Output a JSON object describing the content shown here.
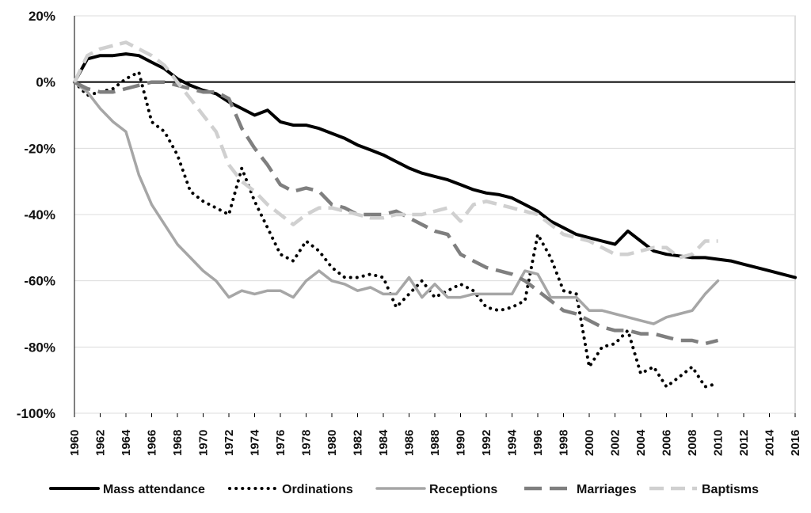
{
  "chart_data": {
    "type": "line",
    "title": "",
    "xlabel": "",
    "ylabel": "",
    "xlim": [
      1960,
      2016
    ],
    "ylim": [
      -100,
      20
    ],
    "y_ticks": [
      20,
      0,
      -20,
      -40,
      -60,
      -80,
      -100
    ],
    "y_tick_labels": [
      "20%",
      "0%",
      "-20%",
      "-40%",
      "-60%",
      "-80%",
      "-100%"
    ],
    "x_ticks": [
      1960,
      1962,
      1964,
      1966,
      1968,
      1970,
      1972,
      1974,
      1976,
      1978,
      1980,
      1982,
      1984,
      1986,
      1988,
      1990,
      1992,
      1994,
      1996,
      1998,
      2000,
      2002,
      2004,
      2006,
      2008,
      2010,
      2012,
      2014,
      2016
    ],
    "x_tick_labels": [
      "1960",
      "1962",
      "1964",
      "1966",
      "1968",
      "1970",
      "1972",
      "1974",
      "1976",
      "1978",
      "1980",
      "1982",
      "1984",
      "1986",
      "1988",
      "1990",
      "1992",
      "1994",
      "1996",
      "1998",
      "2000",
      "2002",
      "2004",
      "2006",
      "2008",
      "2010",
      "2012",
      "2014",
      "2016"
    ],
    "grid": "horizontal",
    "legend_position": "bottom",
    "series": [
      {
        "name": "Mass attendance",
        "style": "solid-thick",
        "color": "#000000",
        "x": [
          1960,
          1961,
          1962,
          1963,
          1964,
          1965,
          1966,
          1967,
          1968,
          1969,
          1970,
          1971,
          1972,
          1973,
          1974,
          1975,
          1976,
          1977,
          1978,
          1979,
          1980,
          1981,
          1982,
          1983,
          1984,
          1985,
          1986,
          1987,
          1988,
          1989,
          1990,
          1991,
          1992,
          1993,
          1994,
          1995,
          1996,
          1997,
          1998,
          1999,
          2000,
          2001,
          2002,
          2003,
          2004,
          2005,
          2006,
          2007,
          2008,
          2009,
          2010,
          2011,
          2012,
          2013,
          2014,
          2015,
          2016
        ],
        "values": [
          0,
          7,
          8,
          8,
          8.5,
          8,
          6,
          4,
          1,
          -1,
          -2.5,
          -3.5,
          -6,
          -8,
          -10,
          -8.5,
          -12,
          -13,
          -13,
          -14,
          -15.5,
          -17,
          -19,
          -20.5,
          -22,
          -24,
          -26,
          -27.5,
          -28.5,
          -29.5,
          -31,
          -32.5,
          -33.5,
          -34,
          -35,
          -37,
          -39,
          -42,
          -44,
          -46,
          -47,
          -48,
          -49,
          -45,
          -48,
          -51,
          -52,
          -52.5,
          -53,
          -53,
          -53.5,
          -54,
          -55,
          -56,
          -57,
          -58,
          -59
        ]
      },
      {
        "name": "Ordinations",
        "style": "dotted",
        "color": "#000000",
        "x": [
          1960,
          1961,
          1962,
          1963,
          1964,
          1965,
          1966,
          1967,
          1968,
          1969,
          1970,
          1971,
          1972,
          1973,
          1974,
          1975,
          1976,
          1977,
          1978,
          1979,
          1980,
          1981,
          1982,
          1983,
          1984,
          1985,
          1986,
          1987,
          1988,
          1989,
          1990,
          1991,
          1992,
          1993,
          1994,
          1995,
          1996,
          1997,
          1998,
          1999,
          2000,
          2001,
          2002,
          2003,
          2004,
          2005,
          2006,
          2007,
          2008,
          2009,
          2010
        ],
        "values": [
          0,
          -4,
          -3,
          -2,
          1,
          3,
          -12,
          -15,
          -22,
          -33,
          -36,
          -38,
          -40,
          -26,
          -36,
          -44,
          -52,
          -54,
          -48,
          -51,
          -56,
          -59,
          -59,
          -58,
          -59,
          -68,
          -64,
          -60,
          -65,
          -63,
          -61,
          -63,
          -68,
          -69,
          -68,
          -66,
          -46,
          -53,
          -63,
          -64,
          -86,
          -80,
          -79,
          -75,
          -88,
          -86,
          -92,
          -89,
          -86,
          -92,
          -91
        ]
      },
      {
        "name": "Receptions",
        "style": "solid-light",
        "color": "#a6a6a6",
        "x": [
          1960,
          1961,
          1962,
          1963,
          1964,
          1965,
          1966,
          1967,
          1968,
          1969,
          1970,
          1971,
          1972,
          1973,
          1974,
          1975,
          1976,
          1977,
          1978,
          1979,
          1980,
          1981,
          1982,
          1983,
          1984,
          1985,
          1986,
          1987,
          1988,
          1989,
          1990,
          1991,
          1992,
          1993,
          1994,
          1995,
          1996,
          1997,
          1998,
          1999,
          2000,
          2001,
          2002,
          2003,
          2004,
          2005,
          2006,
          2007,
          2008,
          2009,
          2010
        ],
        "values": [
          0,
          -3,
          -8,
          -12,
          -15,
          -28,
          -37,
          -43,
          -49,
          -53,
          -57,
          -60,
          -65,
          -63,
          -64,
          -63,
          -63,
          -65,
          -60,
          -57,
          -60,
          -61,
          -63,
          -62,
          -64,
          -64,
          -59,
          -65,
          -61,
          -65,
          -65,
          -64,
          -64,
          -64,
          -64,
          -57,
          -58,
          -65,
          -65,
          -65,
          -69,
          -69,
          -70,
          -71,
          -72,
          -73,
          -71,
          -70,
          -69,
          -64,
          -60
        ]
      },
      {
        "name": "Marriages",
        "style": "dashed-long",
        "color": "#7f7f7f",
        "x": [
          1960,
          1961,
          1962,
          1963,
          1964,
          1965,
          1966,
          1967,
          1968,
          1969,
          1970,
          1971,
          1972,
          1973,
          1974,
          1975,
          1976,
          1977,
          1978,
          1979,
          1980,
          1981,
          1982,
          1983,
          1984,
          1985,
          1986,
          1987,
          1988,
          1989,
          1990,
          1991,
          1992,
          1993,
          1994,
          1995,
          1996,
          1997,
          1998,
          1999,
          2000,
          2001,
          2002,
          2003,
          2004,
          2005,
          2006,
          2007,
          2008,
          2009,
          2010
        ],
        "values": [
          0,
          -2,
          -3,
          -3,
          -2,
          -1,
          0,
          0,
          -1,
          -2,
          -3,
          -3,
          -5,
          -14,
          -20,
          -25,
          -31,
          -33,
          -32,
          -33,
          -37,
          -38,
          -40,
          -40,
          -40,
          -39,
          -41,
          -43,
          -45,
          -46,
          -52,
          -54,
          -56,
          -57,
          -58,
          -60,
          -63,
          -66,
          -69,
          -70,
          -72,
          -74,
          -75,
          -75,
          -76,
          -76,
          -77,
          -78,
          -78,
          -79,
          -78
        ]
      },
      {
        "name": "Baptisms",
        "style": "dashed-light",
        "color": "#d0d0d0",
        "x": [
          1960,
          1961,
          1962,
          1963,
          1964,
          1965,
          1966,
          1967,
          1968,
          1969,
          1970,
          1971,
          1972,
          1973,
          1974,
          1975,
          1976,
          1977,
          1978,
          1979,
          1980,
          1981,
          1982,
          1983,
          1984,
          1985,
          1986,
          1987,
          1988,
          1989,
          1990,
          1991,
          1992,
          1993,
          1994,
          1995,
          1996,
          1997,
          1998,
          1999,
          2000,
          2001,
          2002,
          2003,
          2004,
          2005,
          2006,
          2007,
          2008,
          2009,
          2010
        ],
        "values": [
          0,
          8,
          10,
          11,
          12,
          10,
          8,
          5,
          0,
          -5,
          -10,
          -15,
          -25,
          -30,
          -33,
          -37,
          -40,
          -43,
          -40,
          -38,
          -38,
          -39,
          -40,
          -41,
          -41,
          -40,
          -40,
          -40,
          -39,
          -38,
          -42,
          -37,
          -36,
          -37,
          -38,
          -39,
          -40,
          -43,
          -46,
          -47,
          -48,
          -50,
          -52,
          -52,
          -51,
          -50,
          -50,
          -53,
          -52,
          -48,
          -48
        ]
      }
    ]
  }
}
